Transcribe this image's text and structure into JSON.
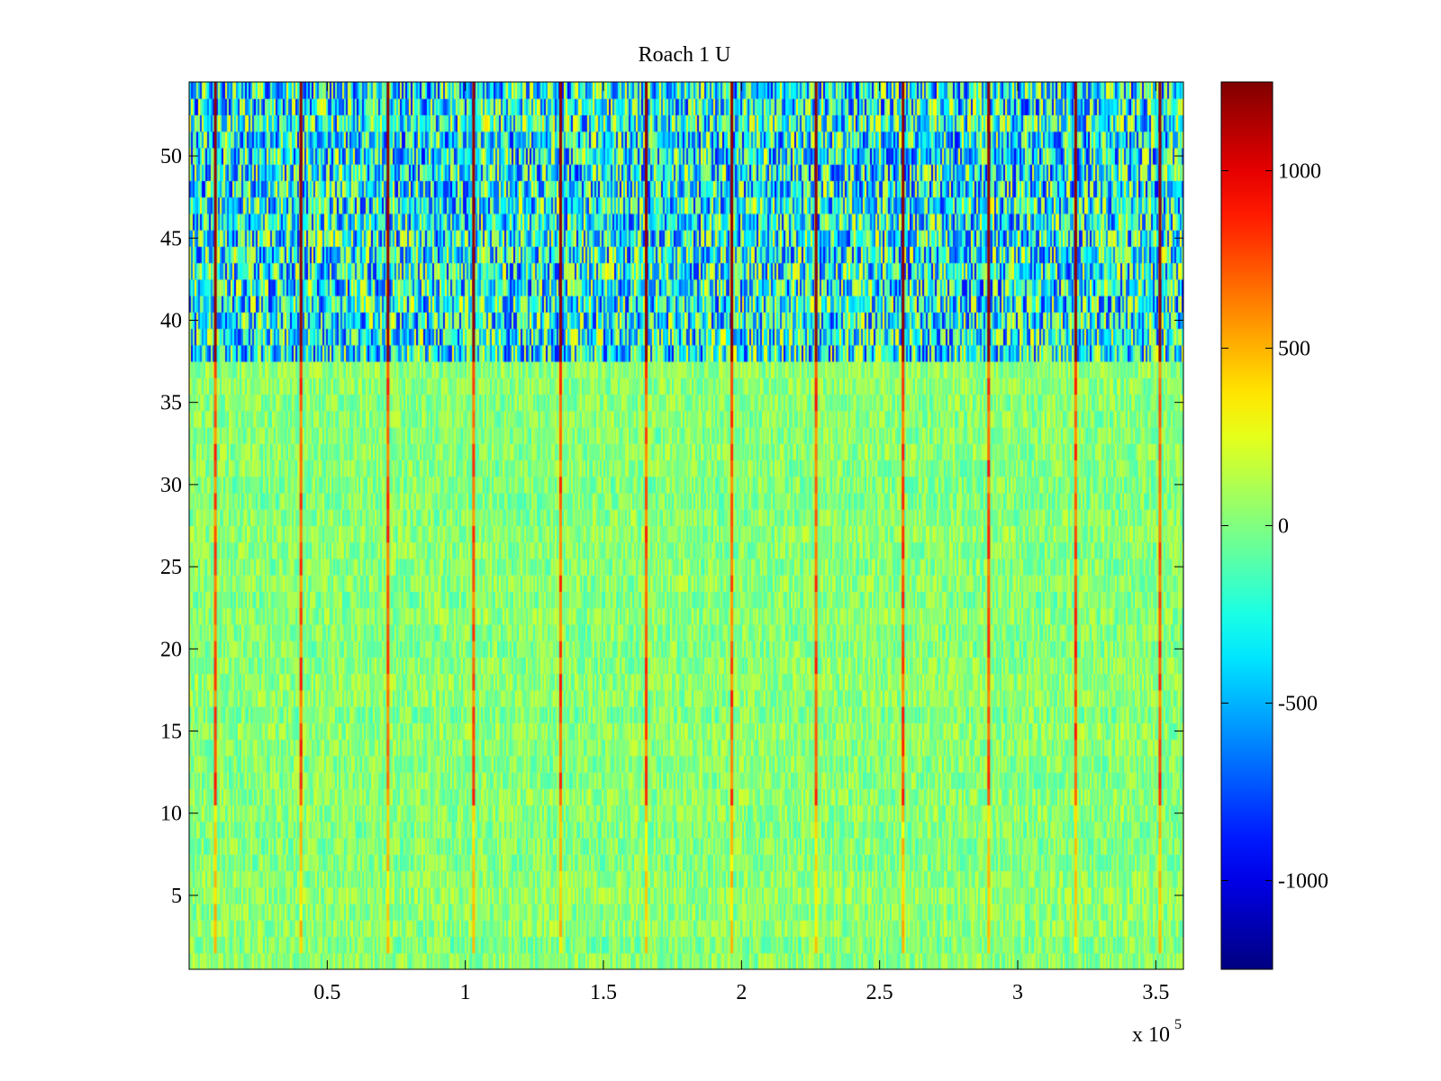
{
  "chart_data": {
    "type": "heatmap",
    "title": "Roach 1 U",
    "xlabel": "",
    "ylabel": "",
    "x_multiplier_label": "x 10",
    "x_multiplier_exponent": "5",
    "xlim": [
      0,
      360000
    ],
    "ylim": [
      0.5,
      54.5
    ],
    "rows": 54,
    "x_ticks": [
      {
        "value": 50000,
        "label": "0.5"
      },
      {
        "value": 100000,
        "label": "1"
      },
      {
        "value": 150000,
        "label": "1.5"
      },
      {
        "value": 200000,
        "label": "2"
      },
      {
        "value": 250000,
        "label": "2.5"
      },
      {
        "value": 300000,
        "label": "3"
      },
      {
        "value": 350000,
        "label": "3.5"
      }
    ],
    "y_ticks": [
      {
        "value": 5,
        "label": "5"
      },
      {
        "value": 10,
        "label": "10"
      },
      {
        "value": 15,
        "label": "15"
      },
      {
        "value": 20,
        "label": "20"
      },
      {
        "value": 25,
        "label": "25"
      },
      {
        "value": 30,
        "label": "30"
      },
      {
        "value": 35,
        "label": "35"
      },
      {
        "value": 40,
        "label": "40"
      },
      {
        "value": 45,
        "label": "45"
      },
      {
        "value": 50,
        "label": "50"
      }
    ],
    "colorbar": {
      "colormap": "jet",
      "clim": [
        -1250,
        1250
      ],
      "ticks": [
        {
          "value": 1000,
          "label": "1000"
        },
        {
          "value": 500,
          "label": "500"
        },
        {
          "value": 0,
          "label": "0"
        },
        {
          "value": -500,
          "label": "-500"
        },
        {
          "value": -1000,
          "label": "-1000"
        }
      ]
    },
    "band_structure": [
      {
        "rows": [
          38,
          54
        ],
        "description": "high variance",
        "typical_range": [
          -900,
          500
        ]
      },
      {
        "rows": [
          1,
          37
        ],
        "description": "low variance",
        "typical_range": [
          -300,
          350
        ]
      }
    ],
    "spike_columns_x": [
      9500,
      40500,
      72000,
      103000,
      134500,
      165500,
      196500,
      227000,
      258500,
      289500,
      321000,
      351500
    ],
    "spike_values": {
      "upper_rows": 1200,
      "middle_rows": 900,
      "lower_rows": 450
    },
    "colors": {
      "axes": "#000000",
      "background": "#ffffff"
    }
  }
}
